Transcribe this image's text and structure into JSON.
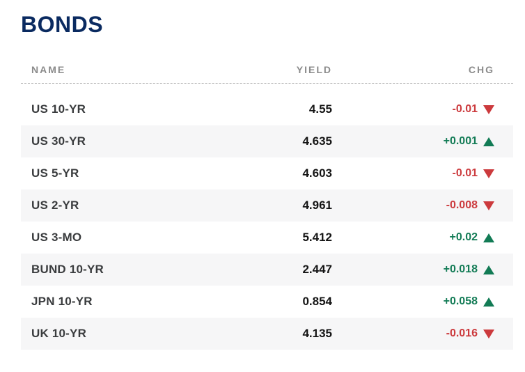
{
  "title": "BONDS",
  "table": {
    "headers": {
      "name": "NAME",
      "yield": "YIELD",
      "chg": "CHG"
    },
    "rows": [
      {
        "name": "US 10-YR",
        "yield": "4.55",
        "chg": "-0.01",
        "direction": "down"
      },
      {
        "name": "US 30-YR",
        "yield": "4.635",
        "chg": "+0.001",
        "direction": "up"
      },
      {
        "name": "US 5-YR",
        "yield": "4.603",
        "chg": "-0.01",
        "direction": "down"
      },
      {
        "name": "US 2-YR",
        "yield": "4.961",
        "chg": "-0.008",
        "direction": "down"
      },
      {
        "name": "US 3-MO",
        "yield": "5.412",
        "chg": "+0.02",
        "direction": "up"
      },
      {
        "name": "BUND 10-YR",
        "yield": "2.447",
        "chg": "+0.018",
        "direction": "up"
      },
      {
        "name": "JPN 10-YR",
        "yield": "0.854",
        "chg": "+0.058",
        "direction": "up"
      },
      {
        "name": "UK 10-YR",
        "yield": "4.135",
        "chg": "-0.016",
        "direction": "down"
      }
    ]
  },
  "colors": {
    "accent-navy": "#0a2a60",
    "positive": "#127b55",
    "negative": "#cc3a3d",
    "stripe": "#f6f6f7",
    "header-text": "#8b8b8b",
    "name-text": "#3a3c3e",
    "yield-text": "#141414",
    "dash": "#a9a9a9"
  },
  "icons": {
    "up": "up-triangle-icon",
    "down": "down-triangle-icon"
  }
}
